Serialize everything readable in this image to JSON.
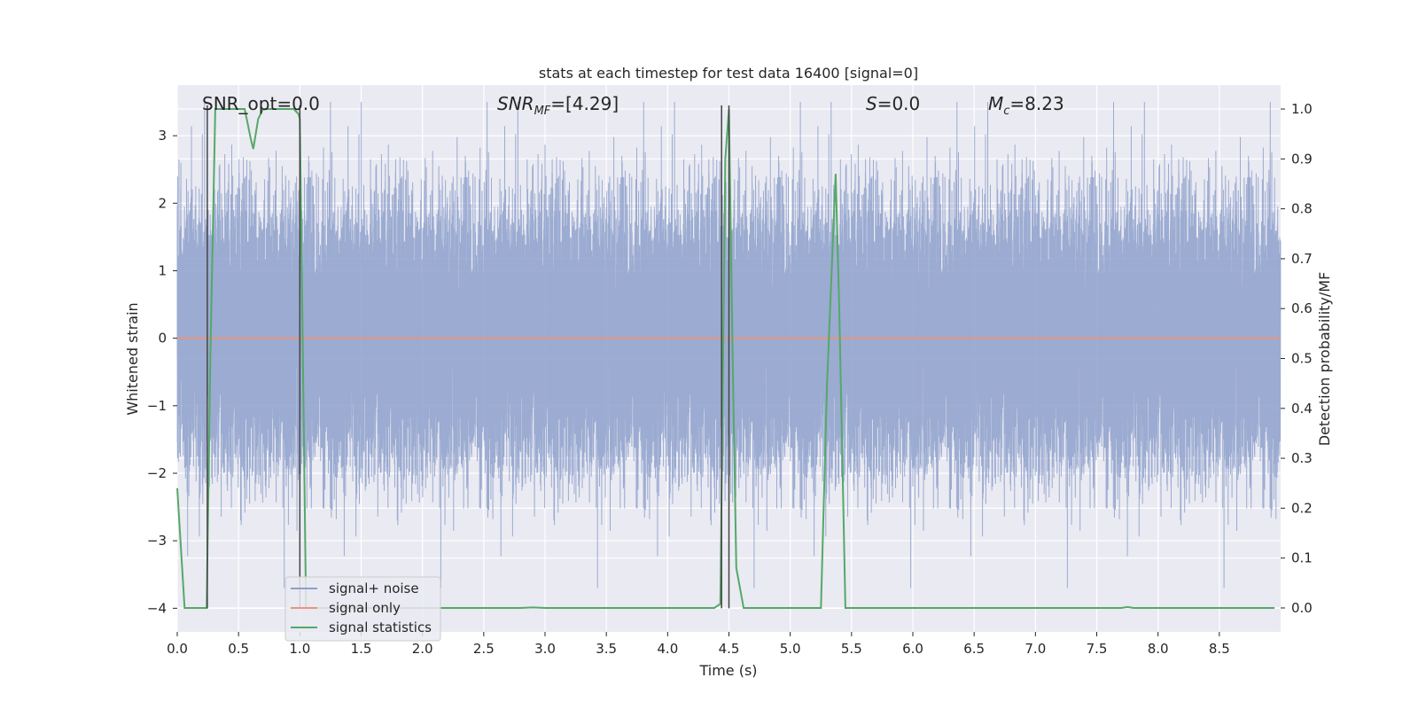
{
  "chart_data": {
    "type": "line",
    "title": "stats at each timestep for test data 16400 [signal=0]",
    "xlabel": "Time (s)",
    "ylabel": "Whitened strain",
    "y2label": "Detection probability/MF",
    "xlim": [
      0,
      9
    ],
    "ylim": [
      -4.35,
      3.75
    ],
    "y2lim": [
      -0.048,
      1.048
    ],
    "xticks": [
      0.0,
      0.5,
      1.0,
      1.5,
      2.0,
      2.5,
      3.0,
      3.5,
      4.0,
      4.5,
      5.0,
      5.5,
      6.0,
      6.5,
      7.0,
      7.5,
      8.0,
      8.5
    ],
    "xtick_labels": [
      "0.0",
      "0.5",
      "1.0",
      "1.5",
      "2.0",
      "2.5",
      "3.0",
      "3.5",
      "4.0",
      "4.5",
      "5.0",
      "5.5",
      "6.0",
      "6.5",
      "7.0",
      "7.5",
      "8.0",
      "8.5"
    ],
    "yticks": [
      3,
      2,
      1,
      0,
      -1,
      -2,
      -3,
      -4
    ],
    "ytick_labels": [
      "3",
      "2",
      "1",
      "0",
      "−1",
      "−2",
      "−3",
      "−4"
    ],
    "y2ticks": [
      1.0,
      0.9,
      0.8,
      0.7,
      0.6,
      0.5,
      0.4,
      0.3,
      0.2,
      0.1,
      0.0
    ],
    "y2tick_labels": [
      "1.0",
      "0.9",
      "0.8",
      "0.7",
      "0.6",
      "0.5",
      "0.4",
      "0.3",
      "0.2",
      "0.1",
      "0.0"
    ],
    "grid": true,
    "legend_position": "lower-left",
    "annotations": {
      "snr_opt": "SNR_opt=0.0",
      "snr_mf_base": "SNR",
      "snr_mf_sub": "MF",
      "snr_mf_value": "=[4.29]",
      "s_sym": "S",
      "s_value": "=0.0",
      "mc_base": "M",
      "mc_sub": "c",
      "mc_value": "=8.23"
    },
    "series": [
      {
        "name": "signal+ noise",
        "color": "#8da0cb",
        "axis": "left",
        "kind": "noise",
        "sample_rate": 4096,
        "std": 0.95,
        "range": [
          -3.7,
          3.5
        ]
      },
      {
        "name": "signal only",
        "color": "#e8957a",
        "axis": "left",
        "x": [
          0,
          9
        ],
        "values": [
          0,
          0
        ]
      },
      {
        "name": "signal statistics",
        "color": "#55a868",
        "axis": "right",
        "x": [
          0,
          0.06,
          0.1,
          0.15,
          0.24,
          0.27,
          0.31,
          0.35,
          0.4,
          0.45,
          0.5,
          0.55,
          0.6,
          0.62,
          0.66,
          0.7,
          0.75,
          0.8,
          0.85,
          0.9,
          0.95,
          0.99,
          1.0,
          1.03,
          1.05,
          1.1,
          1.2,
          1.5,
          2.0,
          2.5,
          2.8,
          2.9,
          3.0,
          3.5,
          4.0,
          4.38,
          4.43,
          4.47,
          4.5,
          4.53,
          4.56,
          4.62,
          4.7,
          5.0,
          5.25,
          5.3,
          5.37,
          5.4,
          5.45,
          5.5,
          6.0,
          6.5,
          7.0,
          7.5,
          7.7,
          7.75,
          7.8,
          8.0,
          8.5,
          8.95
        ],
        "values": [
          0.24,
          0.0,
          0.0,
          0.0,
          0.0,
          0.5,
          1.0,
          1.0,
          1.0,
          1.0,
          1.0,
          1.0,
          0.94,
          0.92,
          0.98,
          1.0,
          1.0,
          1.0,
          1.0,
          1.0,
          1.0,
          0.99,
          0.98,
          0.4,
          0.0,
          0.0,
          0.0,
          0.0,
          0.0,
          0.0,
          0.0,
          0.001,
          0.0,
          0.0,
          0.0,
          0.0,
          0.008,
          0.9,
          1.0,
          0.5,
          0.08,
          0.0,
          0.0,
          0.0,
          0.0,
          0.45,
          0.87,
          0.6,
          0.0,
          0.0,
          0.0,
          0.0,
          0.0,
          0.0,
          0.0,
          0.002,
          0.0,
          0.0,
          0.0,
          0.0
        ]
      }
    ],
    "vlines": [
      {
        "x": 0.245,
        "color": "#444444"
      },
      {
        "x": 1.0,
        "color": "#444444"
      },
      {
        "x": 4.44,
        "color": "#444444"
      },
      {
        "x": 4.5,
        "color": "#444444"
      }
    ]
  }
}
